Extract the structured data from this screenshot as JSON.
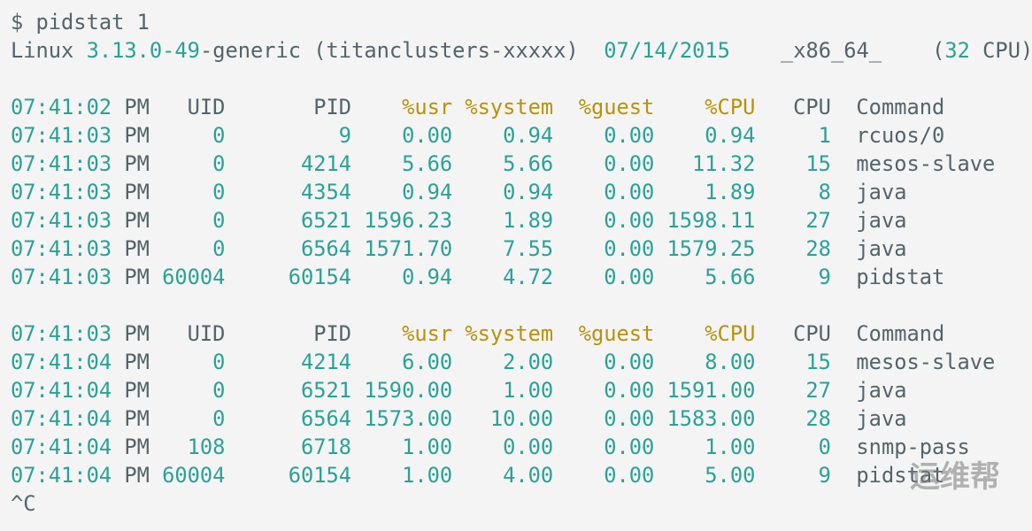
{
  "command": "$ pidstat 1",
  "sysinfo": [
    "Linux ",
    "3.13.0-49",
    "-generic (titanclusters-xxxxx)  ",
    "07/14/2015",
    "    _x86_64_    (",
    "32",
    " CPU)"
  ],
  "blocks": [
    {
      "header": [
        "07:41:02",
        "PM",
        "UID",
        "PID",
        "%usr",
        "%system",
        "%guest",
        "%CPU",
        "CPU",
        "Command"
      ],
      "rows": [
        [
          "07:41:03",
          "PM",
          "0",
          "9",
          "0.00",
          "0.94",
          "0.00",
          "0.94",
          "1",
          "rcuos/0"
        ],
        [
          "07:41:03",
          "PM",
          "0",
          "4214",
          "5.66",
          "5.66",
          "0.00",
          "11.32",
          "15",
          "mesos-slave"
        ],
        [
          "07:41:03",
          "PM",
          "0",
          "4354",
          "0.94",
          "0.94",
          "0.00",
          "1.89",
          "8",
          "java"
        ],
        [
          "07:41:03",
          "PM",
          "0",
          "6521",
          "1596.23",
          "1.89",
          "0.00",
          "1598.11",
          "27",
          "java"
        ],
        [
          "07:41:03",
          "PM",
          "0",
          "6564",
          "1571.70",
          "7.55",
          "0.00",
          "1579.25",
          "28",
          "java"
        ],
        [
          "07:41:03",
          "PM",
          "60004",
          "60154",
          "0.94",
          "4.72",
          "0.00",
          "5.66",
          "9",
          "pidstat"
        ]
      ]
    },
    {
      "header": [
        "07:41:03",
        "PM",
        "UID",
        "PID",
        "%usr",
        "%system",
        "%guest",
        "%CPU",
        "CPU",
        "Command"
      ],
      "rows": [
        [
          "07:41:04",
          "PM",
          "0",
          "4214",
          "6.00",
          "2.00",
          "0.00",
          "8.00",
          "15",
          "mesos-slave"
        ],
        [
          "07:41:04",
          "PM",
          "0",
          "6521",
          "1590.00",
          "1.00",
          "0.00",
          "1591.00",
          "27",
          "java"
        ],
        [
          "07:41:04",
          "PM",
          "0",
          "6564",
          "1573.00",
          "10.00",
          "0.00",
          "1583.00",
          "28",
          "java"
        ],
        [
          "07:41:04",
          "PM",
          "108",
          "6718",
          "1.00",
          "0.00",
          "0.00",
          "1.00",
          "0",
          "snmp-pass"
        ],
        [
          "07:41:04",
          "PM",
          "60004",
          "60154",
          "1.00",
          "4.00",
          "0.00",
          "5.00",
          "9",
          "pidstat"
        ]
      ]
    }
  ],
  "interrupt": "^C",
  "watermark": "运维帮"
}
